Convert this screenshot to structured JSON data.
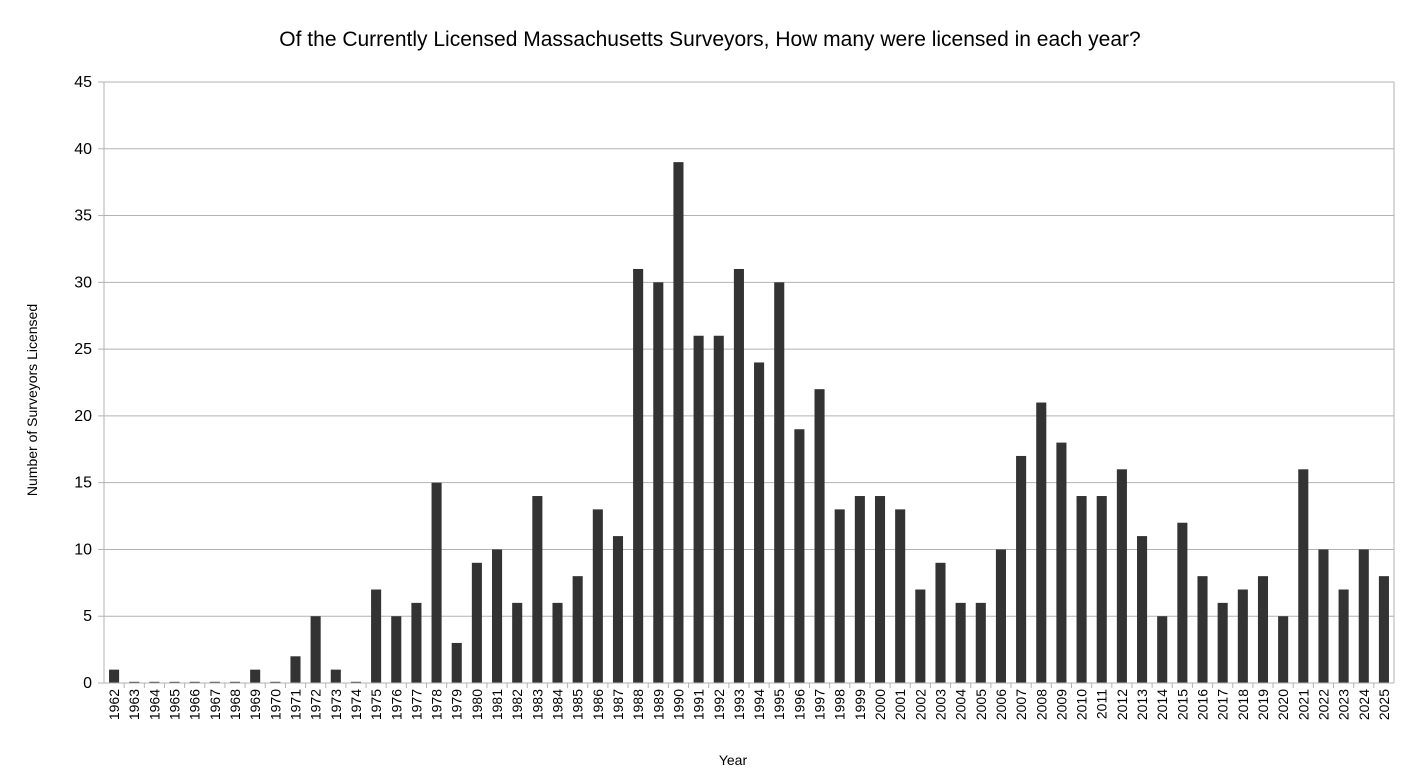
{
  "chart_data": {
    "type": "bar",
    "title": "Of the Currently Licensed Massachusetts Surveyors, How many were licensed in each year?",
    "xlabel": "Year",
    "ylabel": "Number of Surveyors Licensed",
    "ylim": [
      0,
      45
    ],
    "yticks": [
      "0",
      "5",
      "10",
      "15",
      "20",
      "25",
      "30",
      "35",
      "40",
      "45"
    ],
    "grid": true,
    "legend": "none",
    "bar_color": "#333333",
    "categories": [
      "1962",
      "1963",
      "1964",
      "1965",
      "1966",
      "1967",
      "1968",
      "1969",
      "1970",
      "1971",
      "1972",
      "1973",
      "1974",
      "1975",
      "1976",
      "1977",
      "1978",
      "1979",
      "1980",
      "1981",
      "1982",
      "1983",
      "1984",
      "1985",
      "1986",
      "1987",
      "1988",
      "1989",
      "1990",
      "1991",
      "1992",
      "1993",
      "1994",
      "1995",
      "1996",
      "1997",
      "1998",
      "1999",
      "2000",
      "2001",
      "2002",
      "2003",
      "2004",
      "2005",
      "2006",
      "2007",
      "2008",
      "2009",
      "2010",
      "2011",
      "2012",
      "2013",
      "2014",
      "2015",
      "2016",
      "2017",
      "2018",
      "2019",
      "2020",
      "2021",
      "2022",
      "2023",
      "2024",
      "2025"
    ],
    "values": [
      1,
      0,
      0,
      0,
      0,
      0,
      0,
      1,
      0,
      2,
      5,
      1,
      0,
      7,
      5,
      6,
      15,
      3,
      9,
      10,
      6,
      14,
      6,
      8,
      13,
      11,
      31,
      30,
      39,
      26,
      26,
      31,
      24,
      30,
      19,
      22,
      13,
      14,
      14,
      13,
      7,
      9,
      6,
      6,
      10,
      17,
      21,
      18,
      14,
      14,
      16,
      11,
      5,
      12,
      8,
      6,
      7,
      8,
      5,
      16,
      10,
      7,
      10,
      8
    ]
  }
}
